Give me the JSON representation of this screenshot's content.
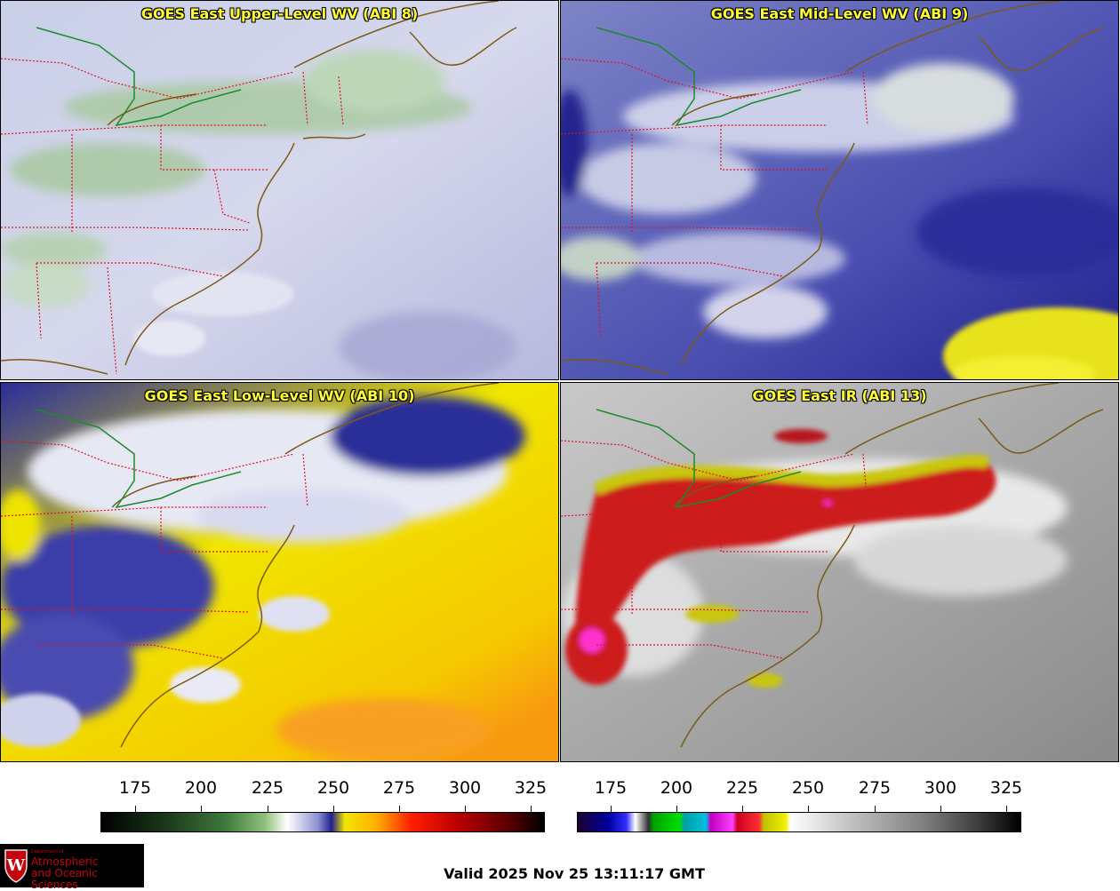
{
  "panels": [
    {
      "id": "upper",
      "title": "GOES East Upper-Level WV (ABI 8)"
    },
    {
      "id": "mid",
      "title": "GOES East Mid-Level WV (ABI 9)"
    },
    {
      "id": "low",
      "title": "GOES East Low-Level WV (ABI 10)"
    },
    {
      "id": "ir",
      "title": "GOES East IR (ABI 13)"
    }
  ],
  "wv_scale": {
    "ticks": [
      "175",
      "200",
      "225",
      "250",
      "275",
      "300",
      "325"
    ]
  },
  "ir_scale": {
    "ticks": [
      "175",
      "200",
      "225",
      "250",
      "275",
      "300",
      "325"
    ]
  },
  "logo": {
    "small": "Department of",
    "line1": "Atmospheric",
    "line2": "and Oceanic Sciences",
    "shield_letter": "W"
  },
  "valid_time": "Valid 2025 Nov 25 13:11:17 GMT",
  "colors": {
    "title": "#ffff33",
    "coast": "#7a5a14",
    "borders": "#e0102a",
    "border_canada": "#1a8a2a"
  }
}
